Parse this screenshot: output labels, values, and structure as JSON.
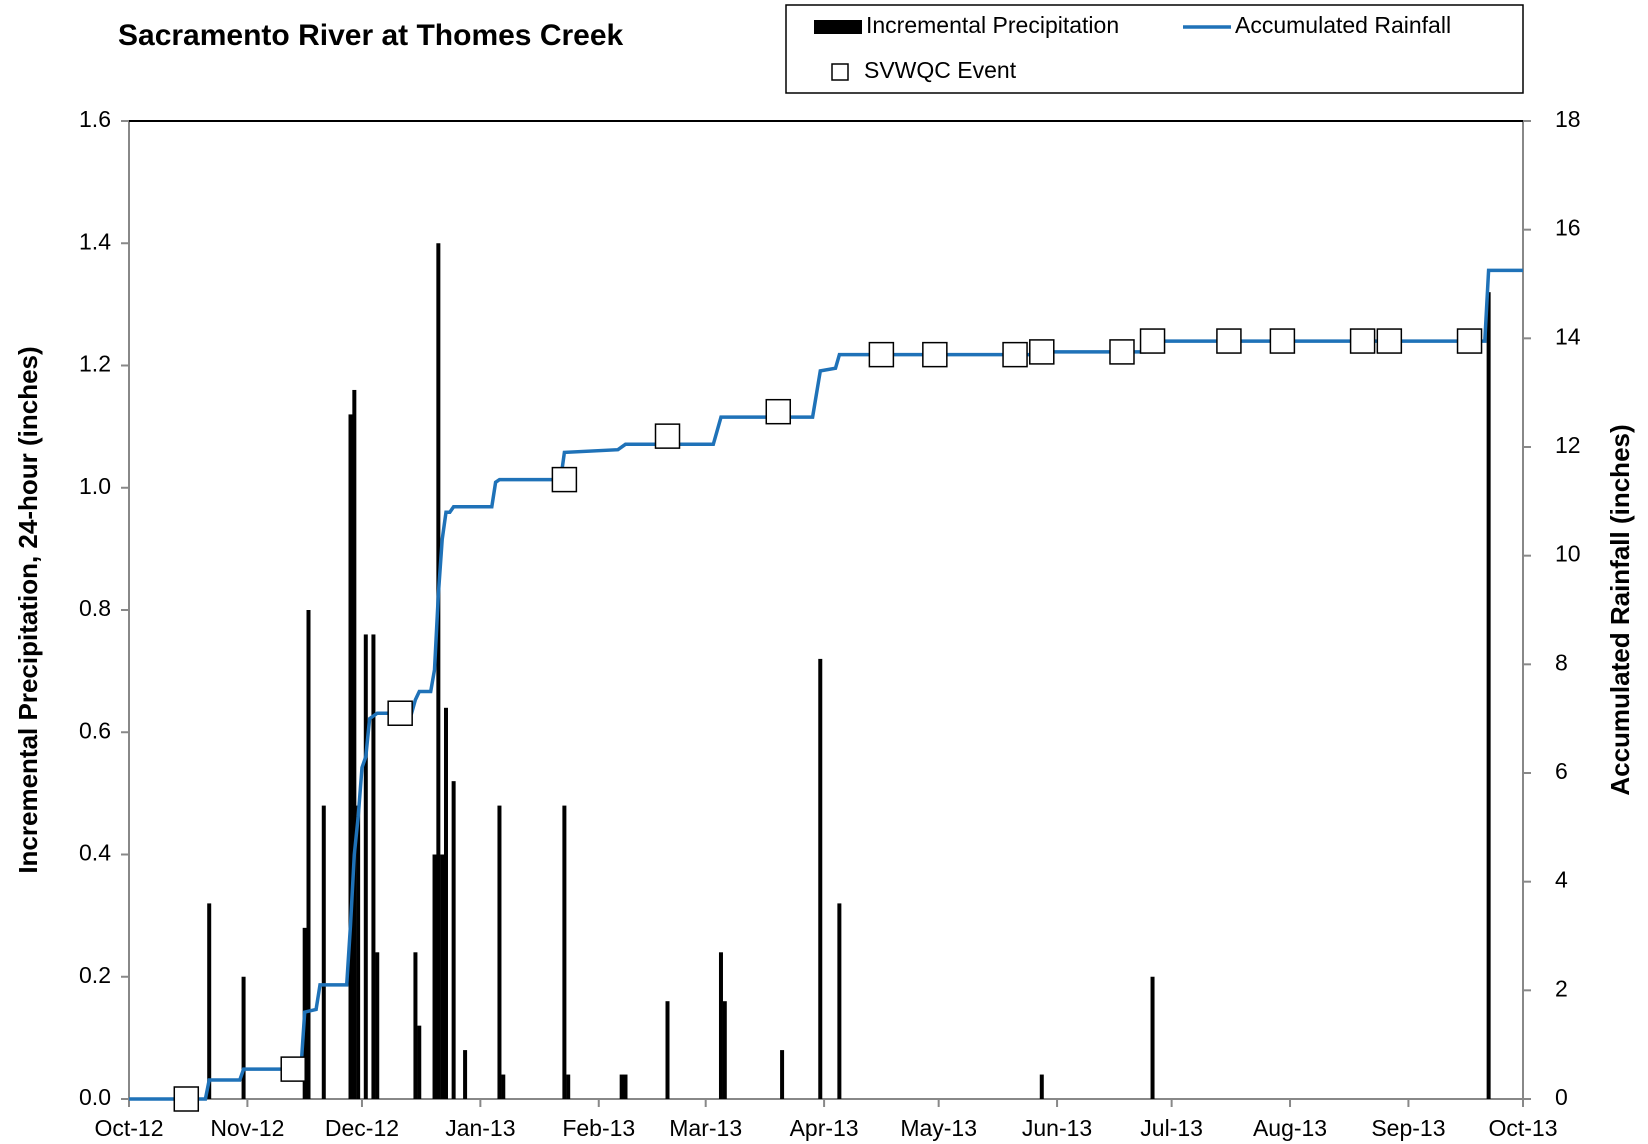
{
  "chart_data": {
    "type": "combo",
    "title": "Sacramento River at Thomes Creek",
    "ylabel": "Incremental Precipitation, 24-hour (inches)",
    "y2label": "Accumulated Rainfall (inches)",
    "xlim": [
      0,
      365
    ],
    "xticks": [
      {
        "value": 0,
        "label": "Oct-12"
      },
      {
        "value": 31,
        "label": "Nov-12"
      },
      {
        "value": 61,
        "label": "Dec-12"
      },
      {
        "value": 92,
        "label": "Jan-13"
      },
      {
        "value": 123,
        "label": "Feb-13"
      },
      {
        "value": 151,
        "label": "Mar-13"
      },
      {
        "value": 182,
        "label": "Apr-13"
      },
      {
        "value": 212,
        "label": "May-13"
      },
      {
        "value": 243,
        "label": "Jun-13"
      },
      {
        "value": 273,
        "label": "Jul-13"
      },
      {
        "value": 304,
        "label": "Aug-13"
      },
      {
        "value": 335,
        "label": "Sep-13"
      },
      {
        "value": 365,
        "label": "Oct-13"
      }
    ],
    "ylim": [
      0,
      1.6
    ],
    "yticks": [
      {
        "value": 0,
        "label": "0.0"
      },
      {
        "value": 0.2,
        "label": "0.2"
      },
      {
        "value": 0.4,
        "label": "0.4"
      },
      {
        "value": 0.6,
        "label": "0.6"
      },
      {
        "value": 0.8,
        "label": "0.8"
      },
      {
        "value": 1,
        "label": "1.0"
      },
      {
        "value": 1.2,
        "label": "1.2"
      },
      {
        "value": 1.4,
        "label": "1.4"
      },
      {
        "value": 1.6,
        "label": "1.6"
      }
    ],
    "y2lim": [
      0,
      18
    ],
    "y2ticks": [
      0,
      2,
      4,
      6,
      8,
      10,
      12,
      14,
      16,
      18
    ],
    "series": [
      {
        "name": "Incremental Precipitation",
        "type": "bar",
        "color": "#000000",
        "x": [
          21,
          30,
          46,
          47,
          51,
          58,
          59,
          60,
          62,
          64,
          65,
          75,
          76,
          80,
          81,
          82,
          83,
          85,
          88,
          97,
          98,
          114,
          115,
          129,
          130,
          141,
          155,
          156,
          171,
          181,
          186,
          239,
          268,
          356
        ],
        "values": [
          0.32,
          0.2,
          0.28,
          0.8,
          0.48,
          1.12,
          1.16,
          0.48,
          0.76,
          0.76,
          0.24,
          0.24,
          0.12,
          0.4,
          1.4,
          0.4,
          0.64,
          0.52,
          0.08,
          0.48,
          0.04,
          0.48,
          0.04,
          0.04,
          0.04,
          0.16,
          0.24,
          0.16,
          0.08,
          0.72,
          0.32,
          0.04,
          0.2,
          1.32
        ]
      },
      {
        "name": "Accumulated Rainfall",
        "type": "line",
        "color": "#1f72b8",
        "axis": "y2",
        "x": [
          0,
          20,
          21,
          29,
          30,
          45,
          46,
          49,
          50,
          57,
          58,
          59,
          60,
          61,
          62,
          63,
          65,
          74,
          75,
          76,
          79,
          80,
          81,
          82,
          83,
          84,
          85,
          95,
          96,
          97,
          113,
          114,
          128,
          130,
          153,
          155,
          179,
          181,
          185,
          186,
          238,
          239,
          266,
          268,
          355,
          356,
          365
        ],
        "values": [
          0,
          0,
          0.35,
          0.35,
          0.55,
          0.55,
          1.6,
          1.65,
          2.1,
          2.1,
          3.2,
          4.5,
          5.2,
          6.1,
          6.3,
          7.0,
          7.1,
          7.1,
          7.35,
          7.5,
          7.5,
          7.9,
          9.3,
          10.3,
          10.8,
          10.8,
          10.9,
          10.9,
          11.35,
          11.4,
          11.4,
          11.9,
          11.95,
          12.05,
          12.05,
          12.55,
          12.55,
          13.4,
          13.45,
          13.7,
          13.7,
          13.75,
          13.75,
          13.95,
          13.95,
          15.25,
          15.25
        ]
      },
      {
        "name": "SVWQC Event",
        "type": "marker",
        "color": "#ffffff",
        "axis": "y2",
        "x": [
          15,
          43,
          71,
          114,
          141,
          170,
          197,
          211,
          232,
          239,
          260,
          268,
          288,
          302,
          323,
          330,
          351
        ],
        "values": [
          0,
          0.55,
          7.1,
          11.4,
          12.2,
          12.65,
          13.7,
          13.7,
          13.7,
          13.75,
          13.75,
          13.95,
          13.95,
          13.95,
          13.95,
          13.95,
          13.95
        ]
      }
    ]
  }
}
